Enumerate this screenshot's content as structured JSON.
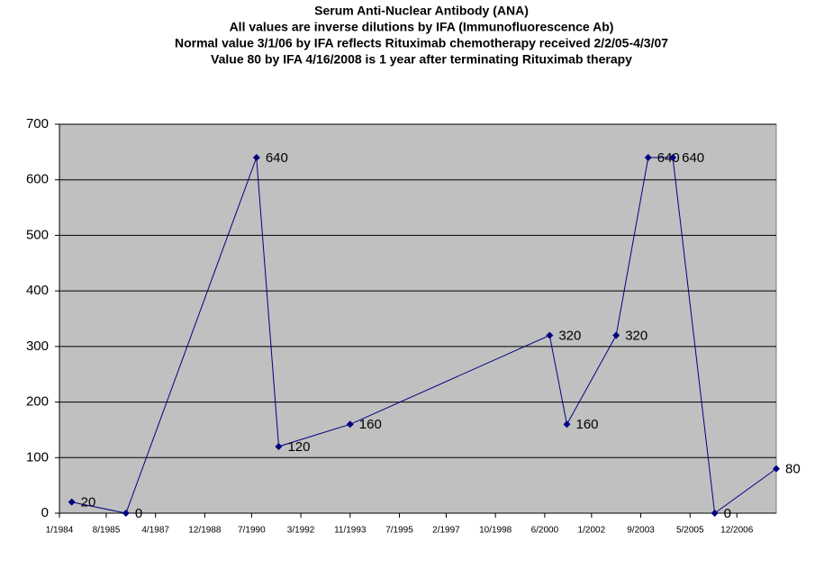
{
  "chart_data": {
    "type": "line",
    "title": [
      "Serum Anti-Nuclear Antibody (ANA)",
      "All values are inverse dilutions by IFA (Immunofluorescence Ab)",
      "Normal value 3/1/06 by IFA reflects Rituximab chemotherapy received 2/2/05-4/3/07",
      "Value 80 by IFA 4/16/2008 is 1 year after terminating Rituximab therapy"
    ],
    "x": [
      "6/1984",
      "4/1986",
      "9/1990",
      "6/1991",
      "11/1993",
      "8/2000",
      "3/2001",
      "11/2002",
      "12/2003",
      "10/2004",
      "3/2006",
      "4/2008"
    ],
    "series": [
      {
        "name": "ANA",
        "color": "#000080",
        "values": [
          20,
          0,
          640,
          120,
          160,
          320,
          160,
          320,
          640,
          640,
          0,
          80
        ]
      }
    ],
    "xlim": [
      "1/1984",
      "4/2008"
    ],
    "xticks": [
      "1/1984",
      "8/1985",
      "4/1987",
      "12/1988",
      "7/1990",
      "3/1992",
      "11/1993",
      "7/1995",
      "2/1997",
      "10/1998",
      "6/2000",
      "1/2002",
      "9/2003",
      "5/2005",
      "12/2006"
    ],
    "ylim": [
      0,
      700
    ],
    "yticks": [
      0,
      100,
      200,
      300,
      400,
      500,
      600,
      700
    ],
    "grid": true,
    "plot_background": "#c0c0c0"
  }
}
